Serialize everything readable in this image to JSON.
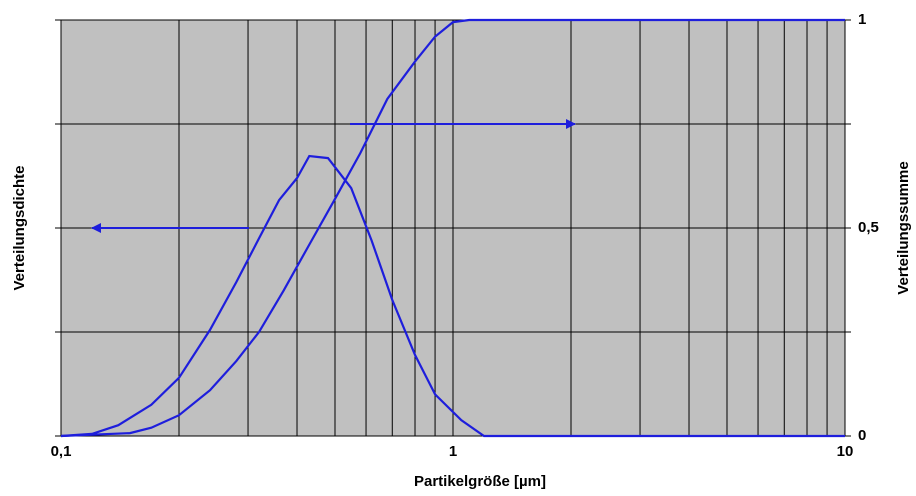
{
  "chart_data": {
    "type": "line",
    "xlabel": "Partikelgröße [µm]",
    "ylabel": "Verteilungsdichte",
    "y2label": "Verteilungssumme",
    "xscale": "log",
    "xlim": [
      0.1,
      10
    ],
    "xticks": [
      {
        "value": 0.1,
        "label": "0,1"
      },
      1,
      10
    ],
    "xgrid": [
      0.1,
      0.2,
      0.3,
      0.4,
      0.5,
      0.6,
      0.7,
      0.8,
      0.9,
      1,
      2,
      3,
      4,
      5,
      6,
      7,
      8,
      9,
      10
    ],
    "ylim": [
      0,
      1
    ],
    "yticks": [
      0,
      0.25,
      0.5,
      0.75,
      1
    ],
    "y2lim": [
      0,
      1
    ],
    "y2ticks": [
      0,
      {
        "value": 0.5,
        "label": "0,5"
      },
      1
    ],
    "grid": true,
    "series": [
      {
        "name": "Verteilungsdichte",
        "color": "#1e1edc",
        "x": [
          0.1,
          0.12,
          0.14,
          0.17,
          0.2,
          0.24,
          0.28,
          0.32,
          0.36,
          0.4,
          0.43,
          0.48,
          0.55,
          0.62,
          0.7,
          0.8,
          0.9,
          1.05,
          1.2,
          10
        ],
        "values": [
          0,
          0.005,
          0.026,
          0.075,
          0.14,
          0.255,
          0.37,
          0.475,
          0.567,
          0.62,
          0.673,
          0.668,
          0.596,
          0.47,
          0.327,
          0.195,
          0.1,
          0.038,
          0,
          0
        ]
      },
      {
        "name": "Verteilungssumme",
        "color": "#1e1edc",
        "axis": "y2",
        "x": [
          0.1,
          0.15,
          0.17,
          0.2,
          0.24,
          0.28,
          0.32,
          0.37,
          0.43,
          0.5,
          0.58,
          0.68,
          0.8,
          0.9,
          1.0,
          1.1,
          10
        ],
        "values": [
          0,
          0.007,
          0.02,
          0.05,
          0.11,
          0.18,
          0.25,
          0.35,
          0.46,
          0.57,
          0.68,
          0.81,
          0.9,
          0.96,
          0.995,
          1,
          1
        ]
      }
    ]
  }
}
